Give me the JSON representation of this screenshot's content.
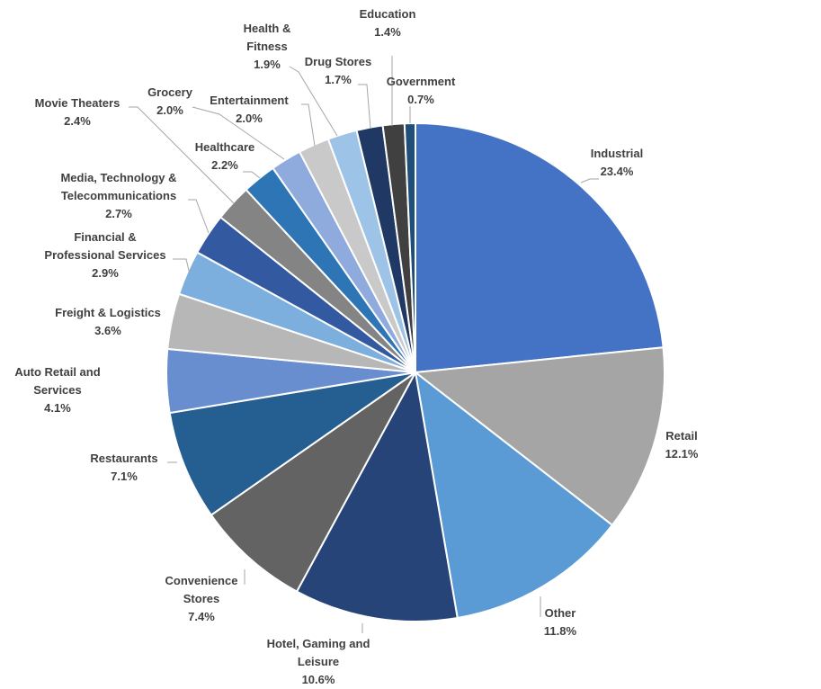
{
  "chart_data": {
    "type": "pie",
    "title": "",
    "unit": "%",
    "slices": [
      {
        "label": "Industrial",
        "value": 23.4,
        "display": "23.4%",
        "color": "#4472C4"
      },
      {
        "label": "Retail",
        "value": 12.1,
        "display": "12.1%",
        "color": "#A5A5A5"
      },
      {
        "label": "Other",
        "value": 11.8,
        "display": "11.8%",
        "color": "#5B9BD5"
      },
      {
        "label": "Hotel, Gaming and Leisure",
        "value": 10.6,
        "display": "10.6%",
        "color": "#264478"
      },
      {
        "label": "Convenience Stores",
        "value": 7.4,
        "display": "7.4%",
        "color": "#636363"
      },
      {
        "label": "Restaurants",
        "value": 7.1,
        "display": "7.1%",
        "color": "#255E91"
      },
      {
        "label": "Auto Retail and Services",
        "value": 4.1,
        "display": "4.1%",
        "color": "#698ED0"
      },
      {
        "label": "Freight & Logistics",
        "value": 3.6,
        "display": "3.6%",
        "color": "#B7B7B7"
      },
      {
        "label": "Financial & Professional Services",
        "value": 2.9,
        "display": "2.9%",
        "color": "#7CAFDD"
      },
      {
        "label": "Media, Technology & Telecommunications",
        "value": 2.7,
        "display": "2.7%",
        "color": "#335AA1"
      },
      {
        "label": "Movie Theaters",
        "value": 2.4,
        "display": "2.4%",
        "color": "#848484"
      },
      {
        "label": "Healthcare",
        "value": 2.2,
        "display": "2.2%",
        "color": "#2E75B6"
      },
      {
        "label": "Grocery",
        "value": 2.0,
        "display": "2.0%",
        "color": "#8FAADC"
      },
      {
        "label": "Entertainment",
        "value": 2.0,
        "display": "2.0%",
        "color": "#C9C9C9"
      },
      {
        "label": "Health & Fitness",
        "value": 1.9,
        "display": "1.9%",
        "color": "#9DC3E6"
      },
      {
        "label": "Drug Stores",
        "value": 1.7,
        "display": "1.7%",
        "color": "#203864"
      },
      {
        "label": "Education",
        "value": 1.4,
        "display": "1.4%",
        "color": "#404040"
      },
      {
        "label": "Government",
        "value": 0.7,
        "display": "0.7%",
        "color": "#1F4E79"
      }
    ],
    "legend": "none",
    "data_labels": "outside with leader lines"
  }
}
